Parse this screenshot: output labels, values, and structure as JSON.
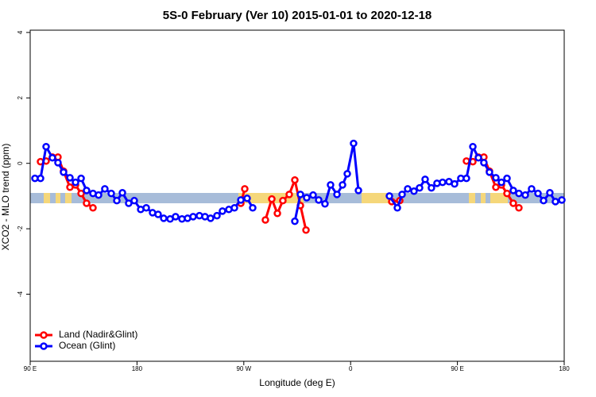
{
  "chart_data": {
    "type": "line",
    "title": "5S-0 February (Ver 10)   2015-01-01 to 2020-12-18",
    "x_label": "Longitude (deg E)",
    "y_label": "XCO2 - MLO trend (ppm)",
    "xlim": [
      90,
      540
    ],
    "ylim": [
      -6.05,
      4.07
    ],
    "xticks": [
      {
        "value": 90,
        "label": "90 E"
      },
      180,
      {
        "value": 270,
        "label": "90 W"
      },
      {
        "value": 360,
        "label": "0"
      },
      {
        "value": 450,
        "label": "90 E"
      },
      {
        "value": 540,
        "label": "180"
      }
    ],
    "yticks": [
      -4,
      -2,
      0,
      2,
      4
    ],
    "legend": "bottom-left",
    "series": [
      {
        "name": "Land (Nadir&Glint)",
        "color": "#ff0000",
        "x": [
          98.7,
          103.4,
          108.7,
          113.4,
          118.1,
          123.5,
          128.2,
          132.9,
          137.5,
          142.9,
          null,
          267.5,
          270.8,
          null,
          288.2,
          293.6,
          298.3,
          302.9,
          308.3,
          313.0,
          317.7,
          322.4,
          null,
          394.7,
          401.4,
          null,
          457.6,
          463.0,
          467.7,
          472.3,
          477.0,
          482.4,
          487.1,
          491.8,
          497.1,
          501.8
        ],
        "values": [
          0.05,
          0.07,
          0.19,
          0.19,
          -0.24,
          -0.73,
          -0.66,
          -0.92,
          -1.22,
          -1.36,
          null,
          -1.22,
          -0.78,
          null,
          -1.73,
          -1.09,
          -1.53,
          -1.14,
          -0.95,
          -0.51,
          -1.29,
          -2.04,
          null,
          -1.17,
          -1.14,
          null,
          0.07,
          0.05,
          0.19,
          0.19,
          -0.24,
          -0.73,
          -0.66,
          -0.92,
          -1.22,
          -1.36
        ]
      },
      {
        "name": "Ocean (Glint)",
        "color": "#0000ff",
        "x": [
          94.0,
          98.7,
          103.4,
          108.7,
          113.4,
          118.1,
          123.5,
          128.2,
          132.9,
          137.5,
          142.9,
          147.6,
          152.9,
          158.3,
          163.0,
          167.7,
          173.0,
          177.7,
          183.1,
          187.8,
          193.1,
          197.8,
          202.5,
          207.9,
          212.5,
          217.9,
          222.6,
          227.3,
          232.6,
          237.3,
          242.0,
          247.4,
          252.0,
          257.4,
          262.1,
          267.5,
          272.8,
          277.5,
          null,
          313.0,
          317.7,
          323.0,
          328.4,
          333.1,
          338.4,
          343.1,
          348.5,
          353.2,
          357.2,
          362.5,
          366.6,
          null,
          392.7,
          399.4,
          403.4,
          408.1,
          413.4,
          418.1,
          422.8,
          428.1,
          432.8,
          437.5,
          442.9,
          447.6,
          452.9,
          457.6,
          463.0,
          467.7,
          472.3,
          477.0,
          482.4,
          487.1,
          491.8,
          497.1,
          501.8,
          507.2,
          512.5,
          517.9,
          522.6,
          527.9,
          532.6,
          538.0
        ],
        "values": [
          -0.46,
          -0.46,
          0.51,
          0.17,
          0.02,
          -0.27,
          -0.44,
          -0.58,
          -0.46,
          -0.83,
          -0.92,
          -0.97,
          -0.78,
          -0.92,
          -1.14,
          -0.9,
          -1.22,
          -1.14,
          -1.41,
          -1.36,
          -1.51,
          -1.56,
          -1.68,
          -1.7,
          -1.63,
          -1.7,
          -1.68,
          -1.63,
          -1.6,
          -1.63,
          -1.68,
          -1.6,
          -1.46,
          -1.41,
          -1.36,
          -1.12,
          -1.07,
          -1.36,
          null,
          -1.77,
          -0.95,
          -1.05,
          -0.97,
          -1.12,
          -1.24,
          -0.66,
          -0.95,
          -0.66,
          -0.32,
          0.61,
          -0.83,
          null,
          -1.0,
          -1.36,
          -0.95,
          -0.78,
          -0.85,
          -0.75,
          -0.49,
          -0.75,
          -0.61,
          -0.58,
          -0.56,
          -0.63,
          -0.46,
          -0.46,
          0.51,
          0.17,
          0.02,
          -0.27,
          -0.44,
          -0.58,
          -0.46,
          -0.83,
          -0.92,
          -0.97,
          -0.78,
          -0.92,
          -1.14,
          -0.9,
          -1.17,
          -1.12
        ]
      }
    ]
  }
}
